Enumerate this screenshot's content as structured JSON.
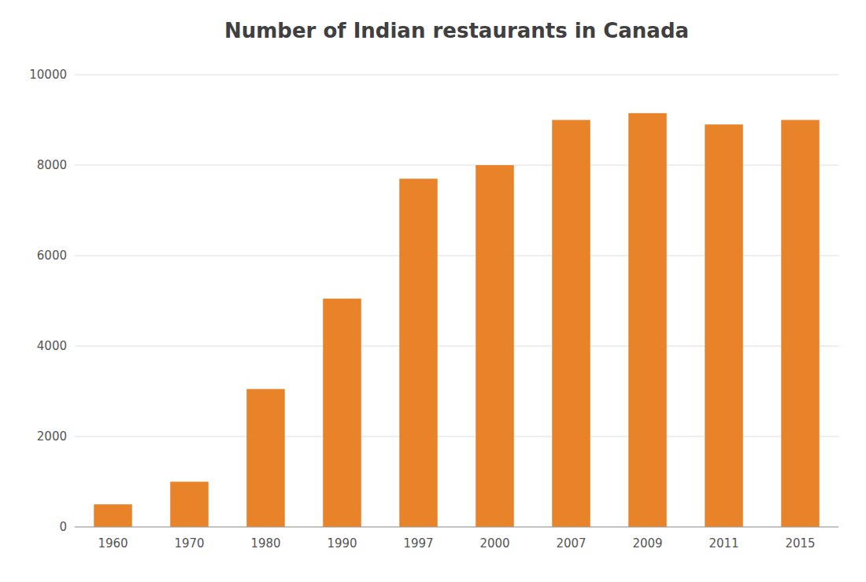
{
  "chart_data": {
    "type": "bar",
    "title": "Number of Indian restaurants in Canada",
    "categories": [
      "1960",
      "1970",
      "1980",
      "1990",
      "1997",
      "2000",
      "2007",
      "2009",
      "2011",
      "2015"
    ],
    "values": [
      500,
      1000,
      3050,
      5050,
      7700,
      8000,
      9000,
      9150,
      8900,
      9000
    ],
    "color": "#E8832A",
    "ylim": [
      0,
      10000
    ],
    "yticks": [
      0,
      2000,
      4000,
      6000,
      8000,
      10000
    ],
    "grid": true
  }
}
